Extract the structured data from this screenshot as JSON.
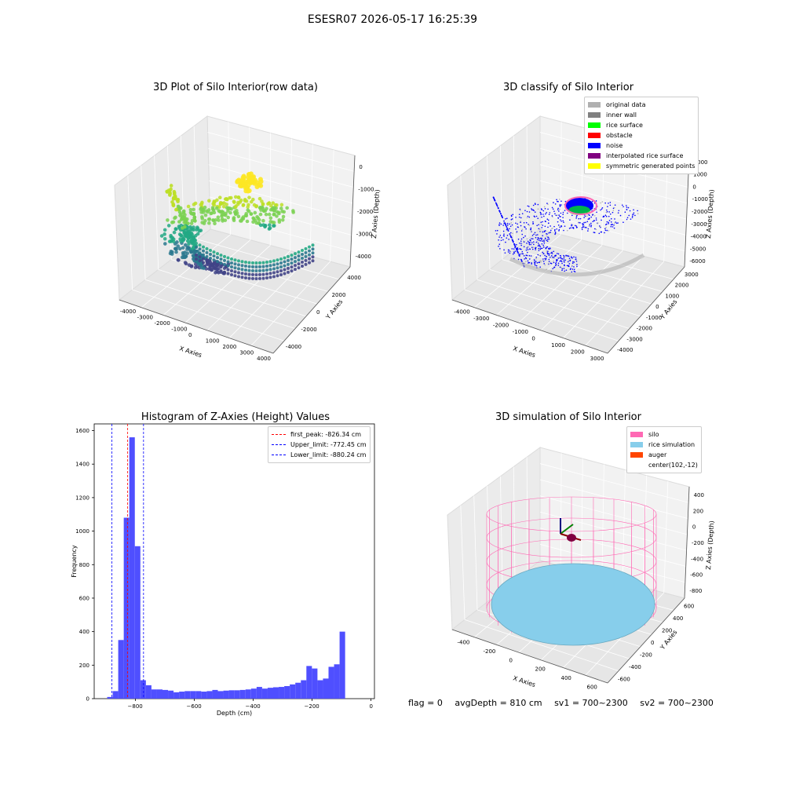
{
  "figure_title": "ESESR07 2026-05-17 16:25:39",
  "bottom_status": {
    "flag": "flag = 0",
    "avg_depth": "avgDepth = 810 cm",
    "sv1": "sv1 = 700~2300",
    "sv2": "sv2 = 700~2300"
  },
  "colors": {
    "grey_data": "#b0b0b0",
    "inner_wall": "#808080",
    "rice_surface": "#00ff00",
    "obstacle": "#ff0000",
    "noise": "#0000ff",
    "interpolated": "#800080",
    "symmetric": "#ffff00",
    "hist_bar": "#4f4fff",
    "silo_pink": "#ff69b4",
    "rice_blue": "#87ceeb",
    "auger": "#ff4500"
  },
  "chart_data": [
    {
      "type": "scatter",
      "title": "3D Plot of Silo Interior(row data)",
      "xlabel": "X Axies",
      "ylabel": "Y Axies",
      "zlabel": "Z Axies (Depth)",
      "x_ticks": [
        "-4000",
        "-3000",
        "-2000",
        "-1000",
        "0",
        "1000",
        "2000",
        "3000",
        "4000"
      ],
      "y_ticks": [
        "-4000",
        "-2000",
        "0",
        "2000",
        "4000"
      ],
      "z_ticks": [
        "-4000",
        "-3000",
        "-2000",
        "-1000",
        "0"
      ],
      "colormap": "viridis"
    },
    {
      "type": "scatter",
      "title": "3D classify of Silo Interior",
      "xlabel": "X Axies",
      "ylabel": "Y Axies",
      "zlabel": "Z Axies (Depth)",
      "x_ticks": [
        "-4000",
        "-3000",
        "-2000",
        "-1000",
        "0",
        "1000",
        "2000",
        "3000"
      ],
      "y_ticks": [
        "-4000",
        "-3000",
        "-2000",
        "-1000",
        "0",
        "1000",
        "2000",
        "3000"
      ],
      "z_ticks": [
        "-6000",
        "-5000",
        "-4000",
        "-3000",
        "-2000",
        "-1000",
        "0",
        "1000",
        "2000"
      ],
      "legend": [
        "original data",
        "inner wall",
        "rice surface",
        "obstacle",
        "noise",
        "interpolated rice surface",
        "symmetric generated points"
      ]
    },
    {
      "type": "bar",
      "title": "Histogram of Z-Axies (Height) Values",
      "xlabel": "Depth (cm)",
      "ylabel": "Frequency",
      "xlim": [
        -940,
        12
      ],
      "ylim": [
        0,
        1640
      ],
      "x_ticks": [
        -800,
        -600,
        -400,
        -200,
        0
      ],
      "y_ticks": [
        0,
        200,
        400,
        600,
        800,
        1000,
        1200,
        1400,
        1600
      ],
      "bin_width": 18.8,
      "bin_start": -896,
      "values": [
        10,
        45,
        350,
        1080,
        1560,
        910,
        110,
        80,
        55,
        55,
        52,
        48,
        38,
        42,
        45,
        45,
        45,
        42,
        45,
        52,
        45,
        48,
        50,
        50,
        52,
        55,
        60,
        70,
        60,
        65,
        68,
        70,
        75,
        85,
        95,
        110,
        195,
        180,
        110,
        120,
        190,
        205,
        400
      ],
      "lines": [
        {
          "label": "first_peak: -826.34 cm",
          "x": -826.34,
          "color": "#ff0000"
        },
        {
          "label": "Upper_limit: -772.45 cm",
          "x": -772.45,
          "color": "#0000ff"
        },
        {
          "label": "Lower_limit: -880.24 cm",
          "x": -880.24,
          "color": "#0000ff"
        }
      ]
    },
    {
      "type": "scatter",
      "title": "3D simulation of Silo Interior",
      "xlabel": "X Axies",
      "ylabel": "Y Axies",
      "zlabel": "Z Axies (Depth)",
      "x_ticks": [
        "-400",
        "-200",
        "0",
        "200",
        "400",
        "600"
      ],
      "y_ticks": [
        "-600",
        "-400",
        "-200",
        "0",
        "200",
        "400",
        "600"
      ],
      "z_ticks": [
        "-800",
        "-600",
        "-400",
        "-200",
        "0",
        "200",
        "400"
      ],
      "legend": [
        "silo",
        "rice simulation",
        "auger",
        "center(102,-12)"
      ]
    }
  ]
}
